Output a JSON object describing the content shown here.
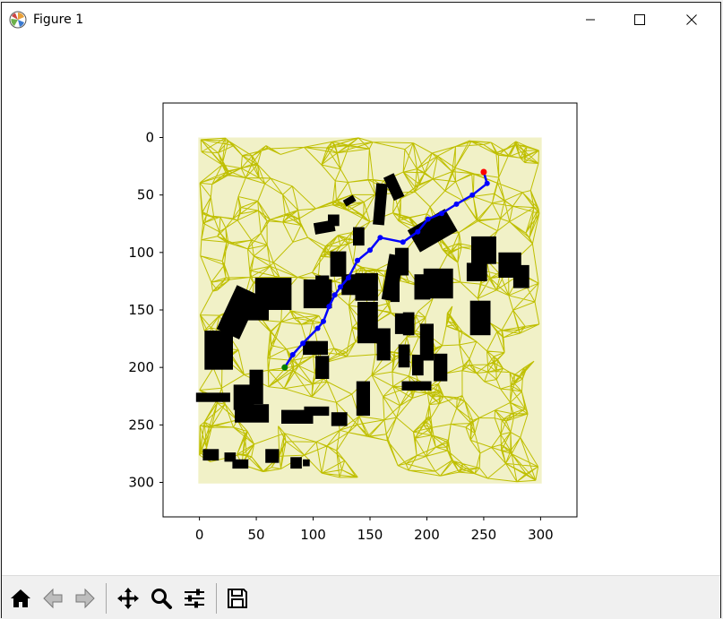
{
  "window": {
    "title": "Figure 1",
    "controls": [
      "minimize",
      "maximize",
      "close"
    ]
  },
  "toolbar": {
    "buttons": [
      {
        "name": "home",
        "icon": "home-icon"
      },
      {
        "name": "back",
        "icon": "back-arrow-icon"
      },
      {
        "name": "forward",
        "icon": "forward-arrow-icon"
      },
      {
        "name": "pan",
        "icon": "pan-move-icon"
      },
      {
        "name": "zoom",
        "icon": "zoom-magnifier-icon"
      },
      {
        "name": "configure-subplots",
        "icon": "sliders-icon"
      },
      {
        "name": "save",
        "icon": "save-disk-icon"
      }
    ]
  },
  "colors": {
    "roadmap": "#bfbf00",
    "path": "#0000ff",
    "start": "#008000",
    "goal": "#ff0000",
    "obstacles": "#000000"
  },
  "chart_data": {
    "type": "scatter",
    "title": "",
    "xlabel": "",
    "ylabel": "",
    "xlim": [
      -32,
      332
    ],
    "ylim": [
      330,
      -30
    ],
    "y_inverted": true,
    "xticks": [
      0,
      50,
      100,
      150,
      200,
      250,
      300
    ],
    "xtick_labels": [
      "0",
      "50",
      "100",
      "150",
      "200",
      "250",
      "300"
    ],
    "yticks": [
      0,
      50,
      100,
      150,
      200,
      250,
      300
    ],
    "ytick_labels": [
      "0",
      "50",
      "100",
      "150",
      "200",
      "250",
      "300"
    ],
    "grid": false,
    "legend": "none",
    "start_point": {
      "x": 75,
      "y": 200
    },
    "goal_point": {
      "x": 250,
      "y": 30
    },
    "path": [
      {
        "x": 75,
        "y": 200
      },
      {
        "x": 82,
        "y": 189
      },
      {
        "x": 91,
        "y": 179
      },
      {
        "x": 104,
        "y": 166
      },
      {
        "x": 109,
        "y": 160
      },
      {
        "x": 114,
        "y": 147
      },
      {
        "x": 119,
        "y": 137
      },
      {
        "x": 124,
        "y": 130
      },
      {
        "x": 131,
        "y": 122
      },
      {
        "x": 139,
        "y": 107
      },
      {
        "x": 150,
        "y": 98
      },
      {
        "x": 159,
        "y": 87
      },
      {
        "x": 179,
        "y": 91
      },
      {
        "x": 192,
        "y": 82
      },
      {
        "x": 201,
        "y": 71
      },
      {
        "x": 213,
        "y": 66
      },
      {
        "x": 226,
        "y": 58
      },
      {
        "x": 240,
        "y": 50
      },
      {
        "x": 253,
        "y": 40
      },
      {
        "x": 250,
        "y": 30
      }
    ]
  }
}
